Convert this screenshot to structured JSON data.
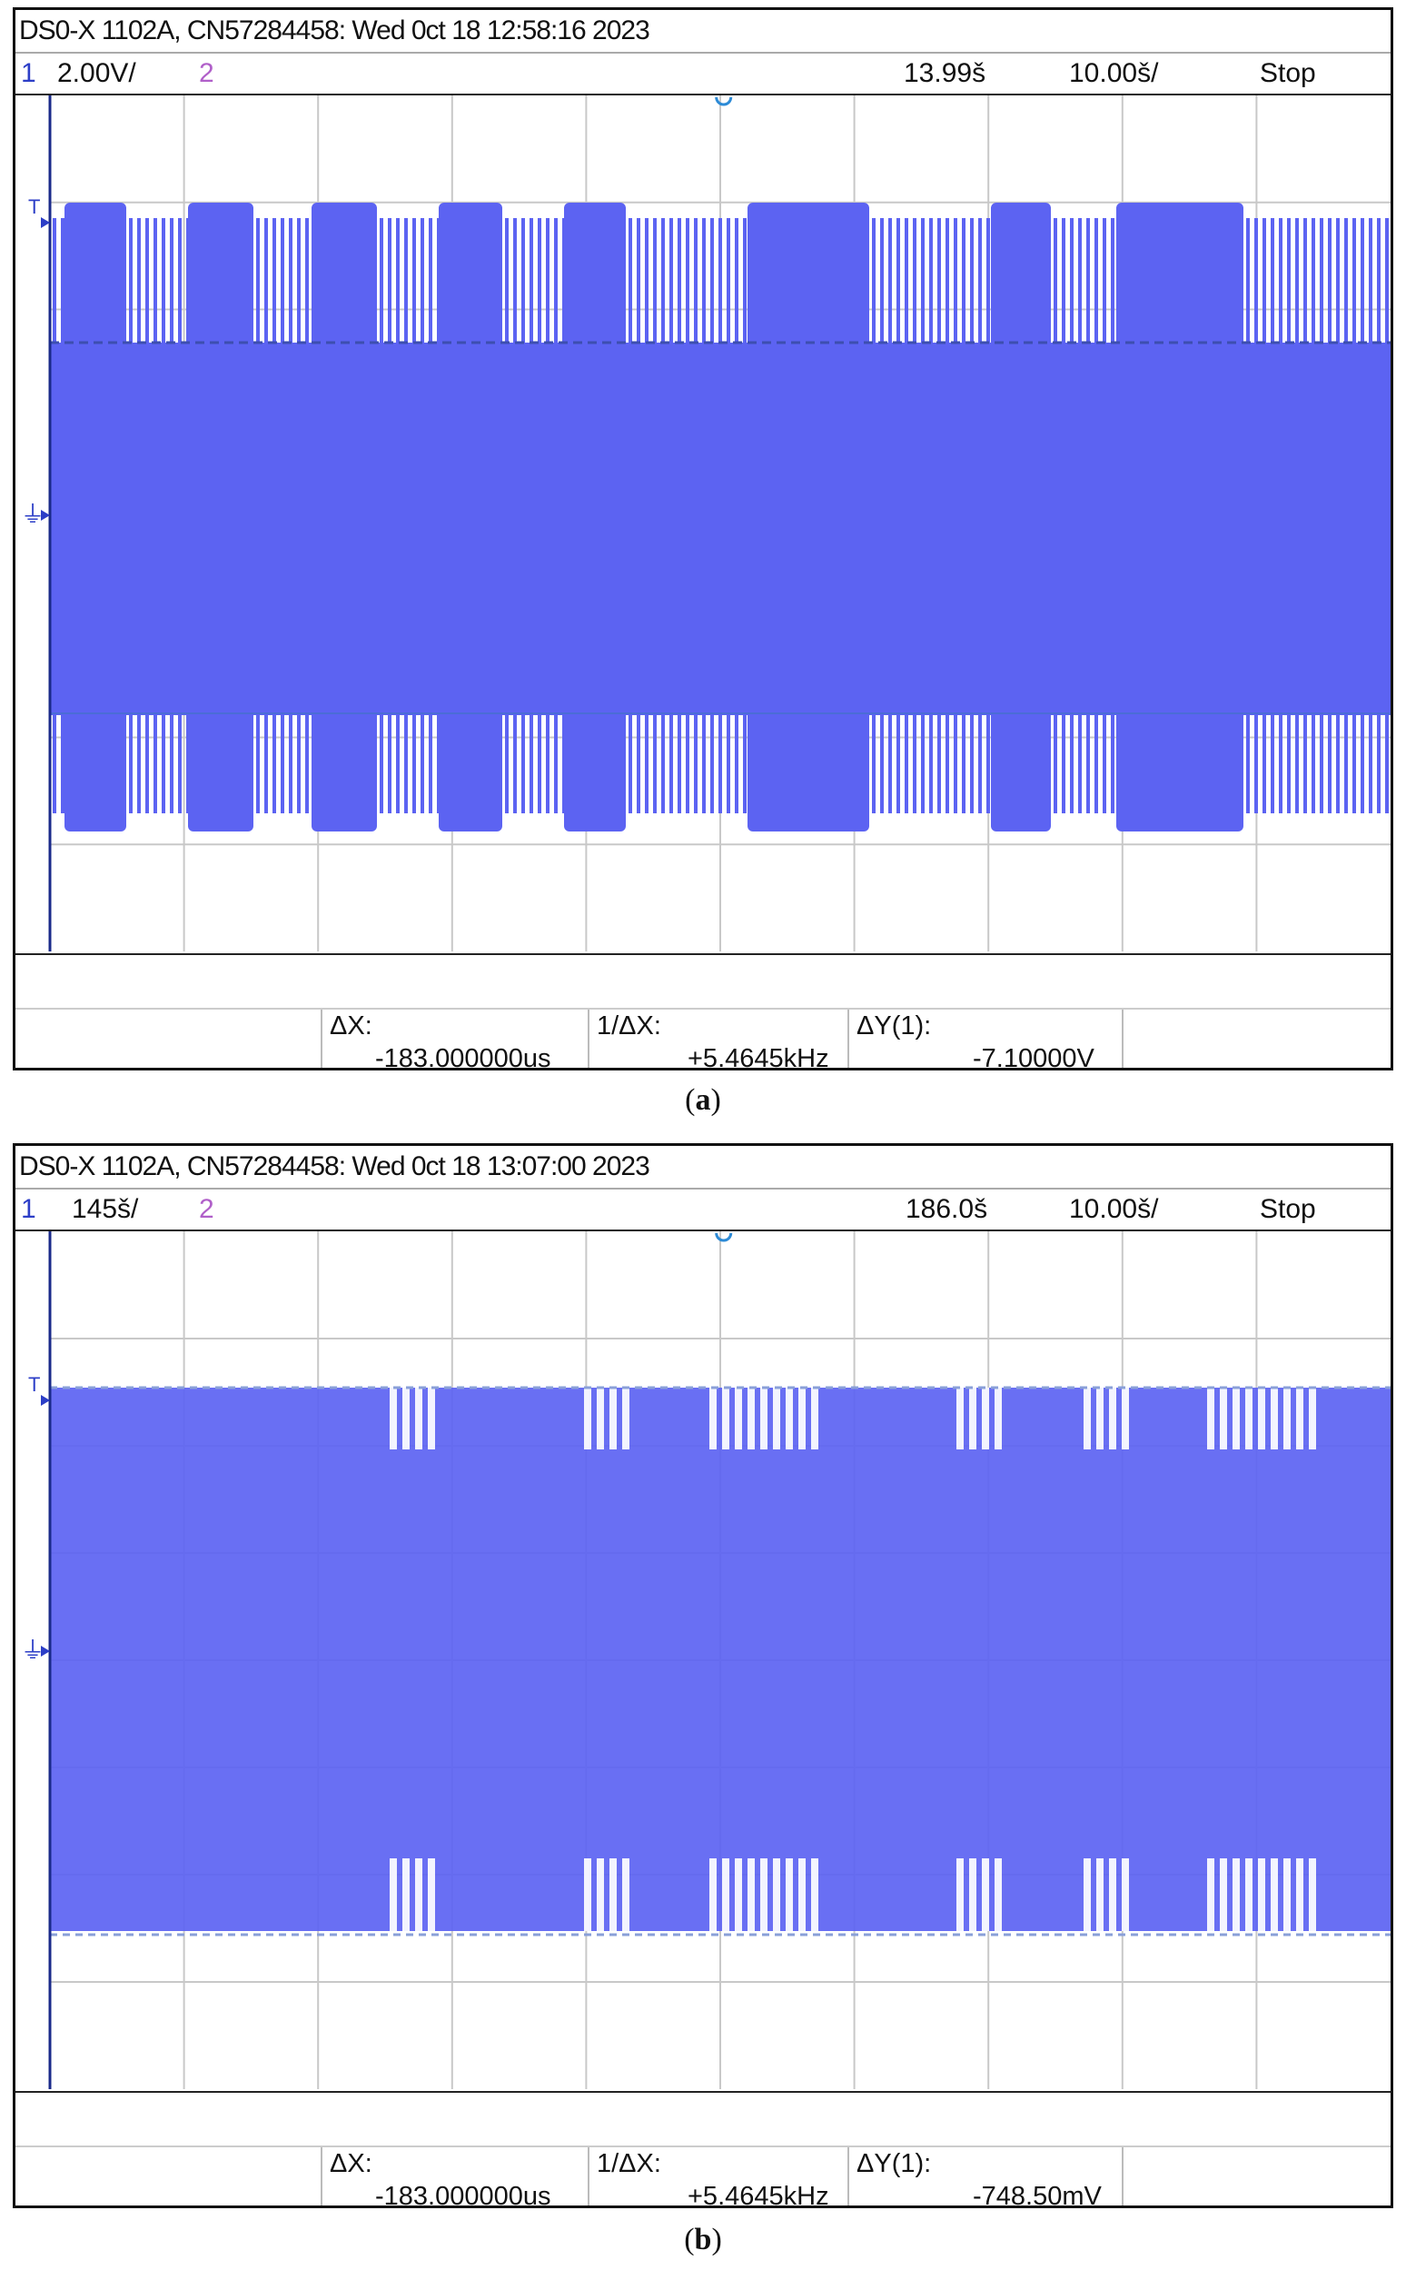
{
  "scopes": [
    {
      "title": "DS0-X 1102A, CN57284458: Wed 0ct 18 12:58:16 2023",
      "ch1_num": "1",
      "ch1_scale": "2.00V/",
      "ch2_num": "2",
      "time_offset": "13.99š",
      "time_scale": "10.00š/",
      "run_state": "Stop",
      "measurements": {
        "dx_label": "ΔX:",
        "dx_value": "-183.000000us",
        "inv_dx_label": "1/ΔX:",
        "inv_dx_value": "+5.4645kHz",
        "dy_label": "ΔY(1):",
        "dy_value": "-7.10000V"
      },
      "caption_open": "(",
      "caption_letter": "a",
      "caption_close": ")"
    },
    {
      "title": "DS0-X 1102A, CN57284458: Wed 0ct 18 13:07:00 2023",
      "ch1_num": "1",
      "ch1_scale": "145š/",
      "ch2_num": "2",
      "time_offset": "186.0š",
      "time_scale": "10.00š/",
      "run_state": "Stop",
      "measurements": {
        "dx_label": "ΔX:",
        "dx_value": "-183.000000us",
        "inv_dx_label": "1/ΔX:",
        "inv_dx_value": "+5.4645kHz",
        "dy_label": "ΔY(1):",
        "dy_value": "-748.50mV"
      },
      "caption_open": "(",
      "caption_letter": "b",
      "caption_close": ")"
    }
  ],
  "markers": {
    "trigger": "T",
    "ground": "⏚"
  },
  "colors": {
    "trace": "#5c63f2",
    "trace_light": "#7b82f5",
    "grid": "#c8c8c8",
    "cursor": "#3d4fb0",
    "ch1": "#2c3ec7",
    "ch2": "#b05fc9"
  }
}
